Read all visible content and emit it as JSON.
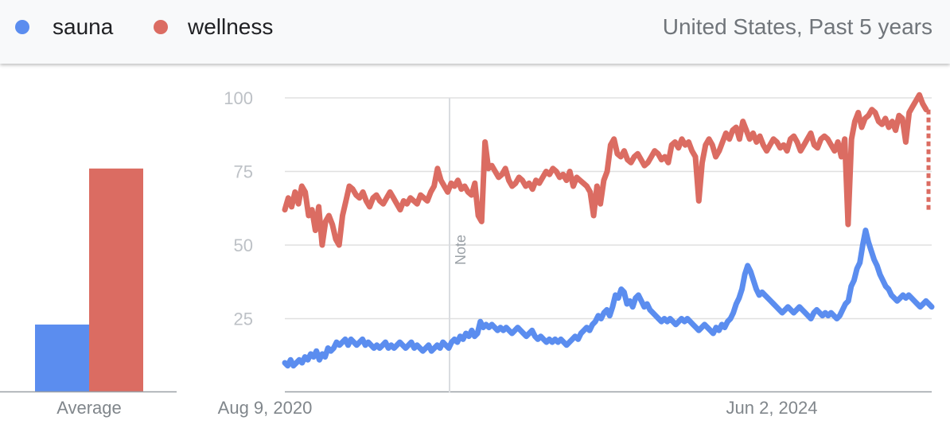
{
  "legend": {
    "items": [
      {
        "label": "sauna",
        "color": "#5b8def"
      },
      {
        "label": "wellness",
        "color": "#db6c62"
      }
    ],
    "region": "United States, Past 5 years"
  },
  "chart_data": [
    {
      "type": "bar",
      "categories": [
        "Average"
      ],
      "series": [
        {
          "name": "sauna",
          "values": [
            23
          ],
          "color": "#5b8def"
        },
        {
          "name": "wellness",
          "values": [
            76
          ],
          "color": "#db6c62"
        }
      ],
      "ylim": [
        0,
        100
      ]
    },
    {
      "type": "line",
      "x_ticks": [
        "Aug 9, 2020",
        "Jun 2, 2024"
      ],
      "y_ticks": [
        25,
        50,
        75,
        100
      ],
      "ylim": [
        0,
        100
      ],
      "note_label": "Note",
      "series": [
        {
          "name": "sauna",
          "color": "#5b8def",
          "values": [
            10,
            9,
            11,
            9,
            10,
            11,
            10,
            12,
            11,
            13,
            12,
            14,
            11,
            13,
            12,
            15,
            14,
            15,
            17,
            16,
            17,
            18,
            16,
            18,
            17,
            16,
            17,
            18,
            16,
            17,
            16,
            15,
            16,
            15,
            16,
            17,
            15,
            16,
            15,
            16,
            17,
            16,
            15,
            16,
            17,
            15,
            16,
            15,
            14,
            15,
            16,
            14,
            15,
            16,
            15,
            17,
            16,
            15,
            17,
            18,
            17,
            19,
            18,
            20,
            19,
            21,
            19,
            20,
            24,
            22,
            23,
            22,
            23,
            22,
            21,
            22,
            21,
            22,
            21,
            20,
            21,
            22,
            21,
            20,
            19,
            20,
            21,
            19,
            18,
            19,
            18,
            17,
            18,
            17,
            18,
            17,
            18,
            17,
            16,
            17,
            18,
            19,
            18,
            20,
            21,
            22,
            21,
            23,
            24,
            26,
            25,
            27,
            28,
            26,
            29,
            33,
            32,
            35,
            34,
            30,
            31,
            29,
            32,
            33,
            31,
            29,
            30,
            28,
            27,
            26,
            25,
            24,
            25,
            24,
            25,
            24,
            23,
            24,
            25,
            24,
            25,
            24,
            23,
            22,
            21,
            22,
            23,
            22,
            21,
            20,
            22,
            21,
            23,
            22,
            24,
            25,
            27,
            30,
            32,
            35,
            40,
            43,
            41,
            38,
            35,
            33,
            34,
            33,
            32,
            31,
            30,
            29,
            28,
            27,
            28,
            29,
            28,
            27,
            28,
            29,
            28,
            27,
            26,
            25,
            27,
            28,
            27,
            26,
            27,
            26,
            27,
            26,
            25,
            26,
            28,
            30,
            31,
            36,
            38,
            42,
            44,
            50,
            55,
            51,
            48,
            45,
            43,
            40,
            38,
            36,
            35,
            33,
            32,
            31,
            32,
            33,
            32,
            33,
            32,
            31,
            30,
            29,
            30,
            31,
            30,
            29
          ]
        },
        {
          "name": "wellness",
          "color": "#db6c62",
          "values": [
            62,
            66,
            63,
            68,
            64,
            70,
            68,
            60,
            62,
            55,
            63,
            50,
            58,
            60,
            57,
            52,
            50,
            60,
            65,
            70,
            69,
            67,
            66,
            68,
            65,
            63,
            66,
            67,
            65,
            64,
            66,
            68,
            66,
            64,
            62,
            65,
            64,
            66,
            65,
            64,
            67,
            66,
            65,
            68,
            70,
            76,
            72,
            70,
            68,
            71,
            70,
            72,
            69,
            70,
            68,
            67,
            71,
            60,
            58,
            85,
            76,
            77,
            75,
            73,
            74,
            76,
            72,
            70,
            71,
            73,
            72,
            70,
            71,
            69,
            72,
            71,
            73,
            75,
            74,
            76,
            75,
            73,
            74,
            72,
            75,
            70,
            73,
            72,
            71,
            70,
            68,
            60,
            70,
            64,
            72,
            75,
            84,
            86,
            81,
            80,
            82,
            79,
            78,
            80,
            81,
            79,
            77,
            78,
            80,
            82,
            81,
            79,
            80,
            78,
            84,
            85,
            83,
            86,
            84,
            85,
            82,
            80,
            65,
            78,
            84,
            86,
            84,
            80,
            82,
            85,
            88,
            86,
            89,
            90,
            86,
            92,
            89,
            86,
            88,
            85,
            87,
            84,
            82,
            84,
            86,
            85,
            83,
            84,
            82,
            86,
            87,
            85,
            82,
            84,
            86,
            88,
            84,
            83,
            86,
            87,
            86,
            84,
            82,
            85,
            80,
            86,
            57,
            86,
            92,
            95,
            90,
            93,
            94,
            96,
            95,
            92,
            91,
            93,
            90,
            92,
            89,
            94,
            93,
            85,
            95,
            97,
            99,
            101,
            98,
            96
          ]
        }
      ]
    }
  ]
}
